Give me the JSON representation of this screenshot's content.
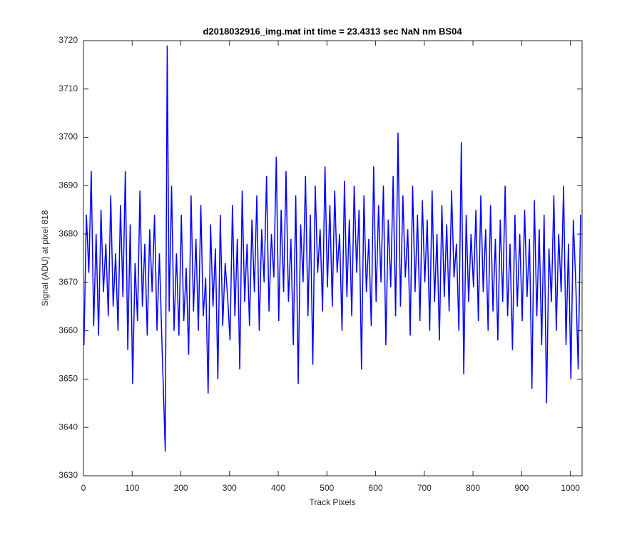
{
  "chart_data": {
    "type": "line",
    "title": "d2018032916_img.mat int time = 23.4313 sec  NaN nm BS04",
    "x_label": "Track Pixels",
    "y_label": "Signal (ADU) at pixel 818",
    "xlim": [
      0,
      1024
    ],
    "ylim": [
      3630,
      3720
    ],
    "xticks": [
      0,
      100,
      200,
      300,
      400,
      500,
      600,
      700,
      800,
      900,
      1000
    ],
    "yticks": [
      3630,
      3640,
      3650,
      3660,
      3670,
      3680,
      3690,
      3700,
      3710,
      3720
    ],
    "x": [
      1,
      6,
      11,
      16,
      21,
      26,
      31,
      36,
      41,
      46,
      51,
      56,
      61,
      66,
      71,
      76,
      81,
      86,
      91,
      96,
      101,
      106,
      111,
      116,
      121,
      126,
      131,
      136,
      141,
      146,
      151,
      156,
      161,
      168,
      172,
      176,
      181,
      186,
      191,
      196,
      201,
      206,
      211,
      216,
      221,
      226,
      231,
      236,
      241,
      246,
      251,
      256,
      261,
      266,
      271,
      276,
      281,
      286,
      291,
      296,
      301,
      306,
      311,
      316,
      321,
      326,
      331,
      336,
      341,
      346,
      351,
      356,
      361,
      366,
      371,
      376,
      381,
      386,
      391,
      396,
      401,
      406,
      411,
      416,
      421,
      426,
      431,
      436,
      441,
      446,
      451,
      456,
      461,
      466,
      471,
      476,
      481,
      486,
      491,
      496,
      501,
      506,
      511,
      516,
      521,
      526,
      531,
      536,
      541,
      546,
      551,
      556,
      561,
      566,
      571,
      576,
      581,
      586,
      591,
      596,
      601,
      606,
      611,
      616,
      621,
      626,
      631,
      636,
      641,
      646,
      651,
      656,
      661,
      666,
      671,
      676,
      681,
      686,
      691,
      696,
      701,
      706,
      711,
      716,
      721,
      726,
      731,
      736,
      741,
      746,
      751,
      756,
      761,
      766,
      771,
      776,
      781,
      786,
      791,
      796,
      801,
      806,
      811,
      816,
      821,
      826,
      831,
      836,
      841,
      846,
      851,
      856,
      861,
      866,
      871,
      876,
      881,
      886,
      891,
      896,
      901,
      906,
      911,
      916,
      921,
      926,
      931,
      936,
      941,
      946,
      951,
      956,
      961,
      966,
      971,
      976,
      981,
      986,
      991,
      996,
      1001,
      1006,
      1011,
      1016,
      1021
    ],
    "series": [
      {
        "color": "#0000ff",
        "values": [
          3657,
          3684,
          3672,
          3693,
          3661,
          3680,
          3659,
          3685,
          3668,
          3678,
          3663,
          3688,
          3665,
          3676,
          3660,
          3686,
          3667,
          3693,
          3656,
          3682,
          3649,
          3674,
          3662,
          3689,
          3665,
          3678,
          3659,
          3681,
          3668,
          3684,
          3660,
          3676,
          3658,
          3635,
          3719,
          3664,
          3690,
          3660,
          3676,
          3659,
          3684,
          3662,
          3673,
          3655,
          3688,
          3664,
          3679,
          3660,
          3686,
          3663,
          3671,
          3647,
          3682,
          3665,
          3677,
          3650,
          3684,
          3661,
          3674,
          3667,
          3658,
          3686,
          3663,
          3679,
          3652,
          3689,
          3666,
          3678,
          3661,
          3683,
          3668,
          3688,
          3660,
          3681,
          3670,
          3692,
          3664,
          3680,
          3671,
          3696,
          3662,
          3685,
          3668,
          3693,
          3666,
          3679,
          3657,
          3688,
          3649,
          3682,
          3670,
          3692,
          3663,
          3684,
          3653,
          3690,
          3672,
          3681,
          3664,
          3694,
          3669,
          3686,
          3665,
          3689,
          3672,
          3680,
          3660,
          3691,
          3667,
          3683,
          3663,
          3690,
          3672,
          3685,
          3652,
          3688,
          3668,
          3679,
          3661,
          3694,
          3666,
          3686,
          3670,
          3690,
          3657,
          3683,
          3669,
          3692,
          3663,
          3701,
          3665,
          3688,
          3671,
          3681,
          3659,
          3690,
          3668,
          3684,
          3662,
          3687,
          3670,
          3683,
          3660,
          3689,
          3666,
          3680,
          3658,
          3686,
          3667,
          3682,
          3664,
          3689,
          3671,
          3678,
          3660,
          3699,
          3651,
          3684,
          3666,
          3680,
          3669,
          3685,
          3662,
          3688,
          3668,
          3681,
          3660,
          3686,
          3664,
          3679,
          3658,
          3683,
          3666,
          3690,
          3663,
          3678,
          3656,
          3684,
          3665,
          3680,
          3662,
          3685,
          3667,
          3679,
          3648,
          3687,
          3663,
          3681,
          3657,
          3684,
          3645,
          3677,
          3666,
          3688,
          3660,
          3680,
          3668,
          3690,
          3657,
          3678,
          3650,
          3683,
          3670,
          3652,
          3684
        ]
      }
    ]
  }
}
